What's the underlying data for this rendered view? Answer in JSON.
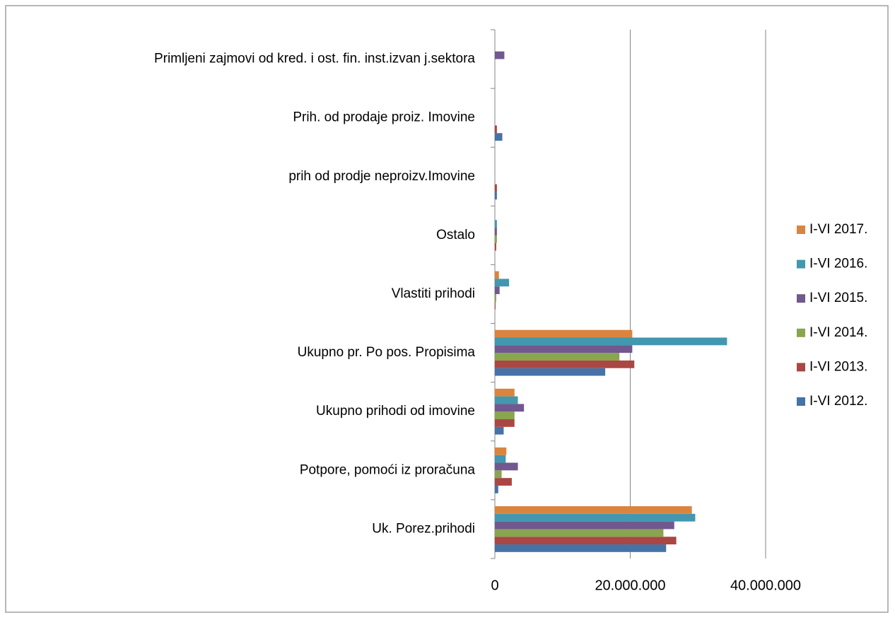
{
  "chart_data": {
    "type": "bar",
    "orientation": "horizontal",
    "categories": [
      "Uk. Porez.prihodi",
      "Potpore, pomoći iz proračuna",
      "Ukupno prihodi od imovine",
      "Ukupno pr. Po pos. Propisima",
      "Vlastiti prihodi",
      "Ostalo",
      "prih od prodje neproizv.Imovine",
      "Prih. od prodaje proiz. Imovine",
      "Primljeni zajmovi od kred. i ost. fin. inst.izvan j.sektora"
    ],
    "series": [
      {
        "name": "I-VI 2012.",
        "color": "#4572a7",
        "values": [
          25300000,
          500000,
          1300000,
          16300000,
          0,
          0,
          300000,
          1100000,
          0
        ]
      },
      {
        "name": "I-VI 2013.",
        "color": "#aa4643",
        "values": [
          26800000,
          2500000,
          2900000,
          20600000,
          100000,
          200000,
          300000,
          300000,
          0
        ]
      },
      {
        "name": "I-VI 2014.",
        "color": "#89a54e",
        "values": [
          24900000,
          1000000,
          2900000,
          18400000,
          200000,
          300000,
          0,
          0,
          0
        ]
      },
      {
        "name": "I-VI 2015.",
        "color": "#71588f",
        "values": [
          26500000,
          3400000,
          4300000,
          20300000,
          700000,
          300000,
          0,
          0,
          1400000
        ]
      },
      {
        "name": "I-VI 2016.",
        "color": "#4198af",
        "values": [
          29600000,
          1600000,
          3400000,
          34300000,
          2100000,
          300000,
          0,
          0,
          0
        ]
      },
      {
        "name": "I-VI 2017.",
        "color": "#db843d",
        "values": [
          29100000,
          1700000,
          2900000,
          20300000,
          600000,
          0,
          0,
          0,
          0
        ]
      }
    ],
    "xlim": [
      0,
      40000000
    ],
    "xticks": [
      0,
      {
        "value": 20000000,
        "label": "20.000.000"
      },
      {
        "value": 40000000,
        "label": "40.000.000"
      }
    ],
    "grid": true,
    "legend": "right"
  }
}
